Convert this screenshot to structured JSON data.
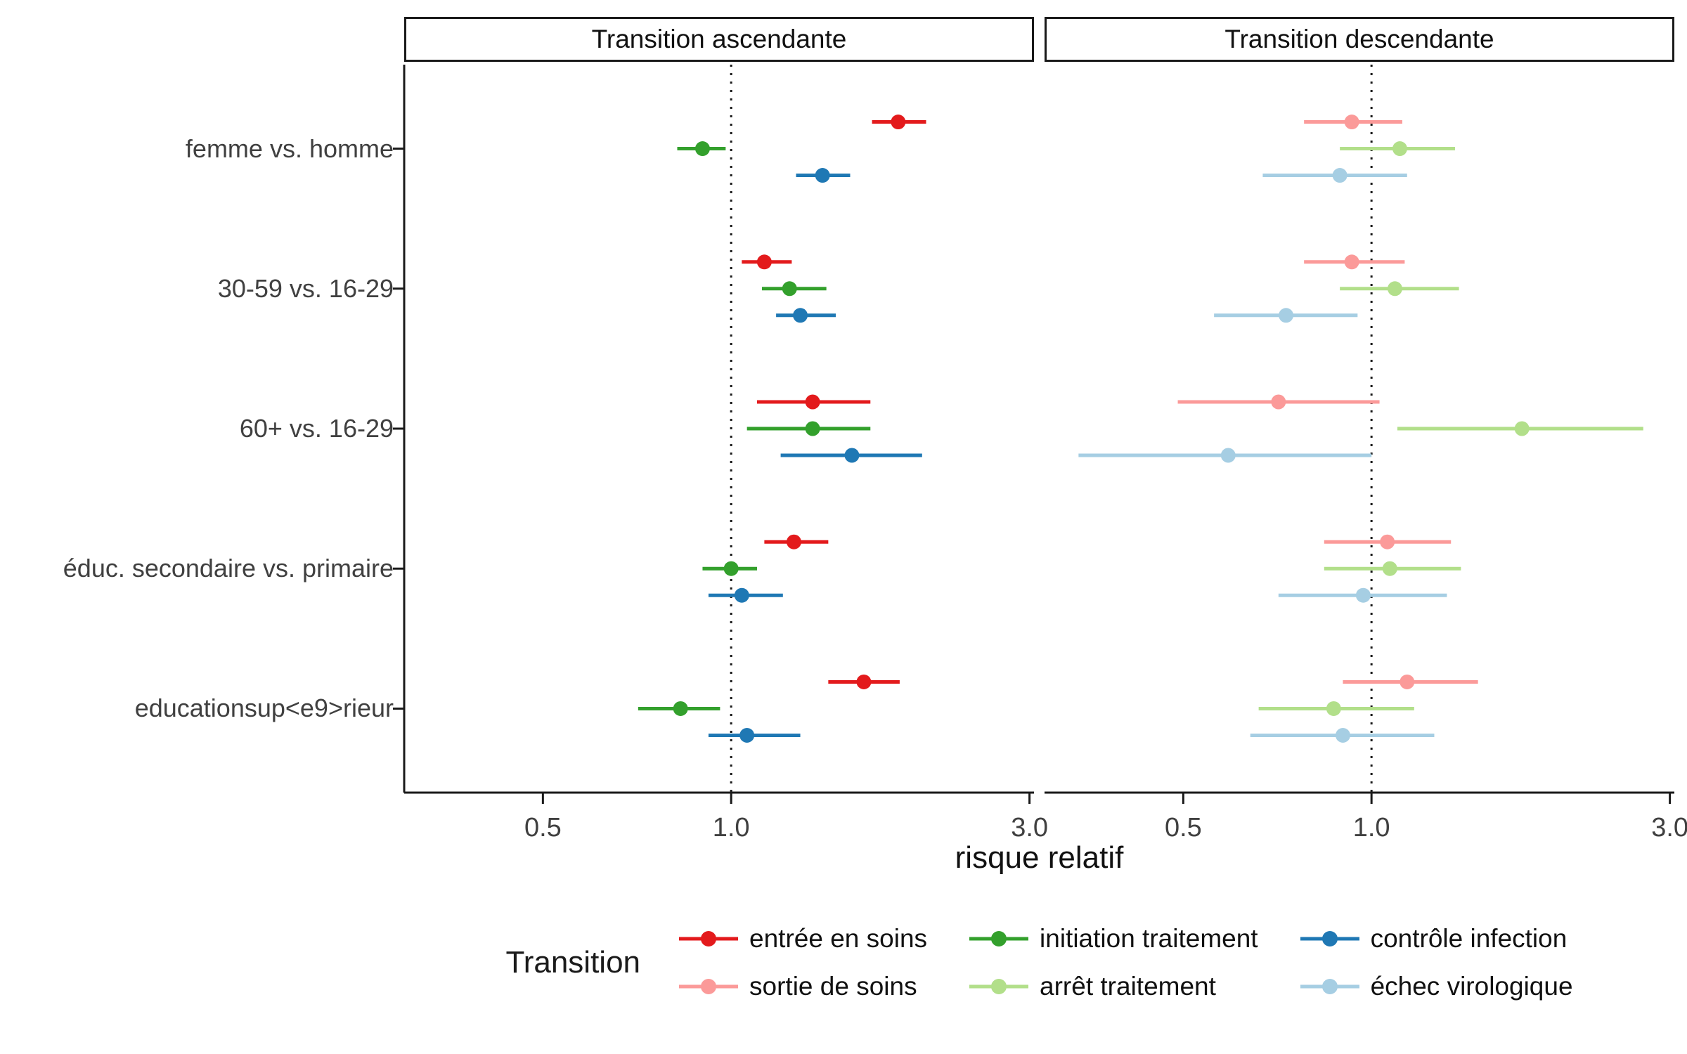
{
  "chart_data": {
    "type": "forest",
    "xlabel": "risque relatif",
    "x_scale": "log",
    "x_ticks": [
      0.5,
      1.0,
      3.0
    ],
    "x_tick_labels": [
      "0.5",
      "1.0",
      "3.0"
    ],
    "x_range": [
      0.3,
      3.05
    ],
    "reference_line": 1.0,
    "legend_title": "Transition",
    "legend_position": "bottom",
    "grid": "off",
    "panels": [
      {
        "title": "Transition ascendante"
      },
      {
        "title": "Transition descendante"
      }
    ],
    "categories": [
      "femme vs. homme",
      "30-59 vs. 16-29",
      "60+ vs. 16-29",
      "éduc. secondaire vs. primaire",
      "educationsup<e9>rieur"
    ],
    "series": [
      {
        "name": "entrée en soins",
        "color": "#e31a1c",
        "panel": 0,
        "points": [
          {
            "est": 1.85,
            "lo": 1.68,
            "hi": 2.05
          },
          {
            "est": 1.13,
            "lo": 1.04,
            "hi": 1.25
          },
          {
            "est": 1.35,
            "lo": 1.1,
            "hi": 1.67
          },
          {
            "est": 1.26,
            "lo": 1.13,
            "hi": 1.43
          },
          {
            "est": 1.63,
            "lo": 1.43,
            "hi": 1.86
          }
        ]
      },
      {
        "name": "initiation traitement",
        "color": "#33a02c",
        "panel": 0,
        "points": [
          {
            "est": 0.9,
            "lo": 0.82,
            "hi": 0.98
          },
          {
            "est": 1.24,
            "lo": 1.12,
            "hi": 1.42
          },
          {
            "est": 1.35,
            "lo": 1.06,
            "hi": 1.67
          },
          {
            "est": 1.0,
            "lo": 0.9,
            "hi": 1.1
          },
          {
            "est": 0.83,
            "lo": 0.71,
            "hi": 0.96
          }
        ]
      },
      {
        "name": "contrôle infection",
        "color": "#1f78b4",
        "panel": 0,
        "points": [
          {
            "est": 1.4,
            "lo": 1.27,
            "hi": 1.55
          },
          {
            "est": 1.29,
            "lo": 1.18,
            "hi": 1.47
          },
          {
            "est": 1.56,
            "lo": 1.2,
            "hi": 2.02
          },
          {
            "est": 1.04,
            "lo": 0.92,
            "hi": 1.21
          },
          {
            "est": 1.06,
            "lo": 0.92,
            "hi": 1.29
          }
        ]
      },
      {
        "name": "sortie de soins",
        "color": "#fb9a99",
        "panel": 1,
        "points": [
          {
            "est": 0.93,
            "lo": 0.78,
            "hi": 1.12
          },
          {
            "est": 0.93,
            "lo": 0.78,
            "hi": 1.13
          },
          {
            "est": 0.71,
            "lo": 0.49,
            "hi": 1.03
          },
          {
            "est": 1.06,
            "lo": 0.84,
            "hi": 1.34
          },
          {
            "est": 1.14,
            "lo": 0.9,
            "hi": 1.48
          }
        ]
      },
      {
        "name": "arrêt traitement",
        "color": "#b2df8a",
        "panel": 1,
        "points": [
          {
            "est": 1.11,
            "lo": 0.89,
            "hi": 1.36
          },
          {
            "est": 1.09,
            "lo": 0.89,
            "hi": 1.38
          },
          {
            "est": 1.74,
            "lo": 1.1,
            "hi": 2.72
          },
          {
            "est": 1.07,
            "lo": 0.84,
            "hi": 1.39
          },
          {
            "est": 0.87,
            "lo": 0.66,
            "hi": 1.17
          }
        ]
      },
      {
        "name": "échec virologique",
        "color": "#a6cee3",
        "panel": 1,
        "points": [
          {
            "est": 0.89,
            "lo": 0.67,
            "hi": 1.14
          },
          {
            "est": 0.73,
            "lo": 0.56,
            "hi": 0.95
          },
          {
            "est": 0.59,
            "lo": 0.34,
            "hi": 1.0
          },
          {
            "est": 0.97,
            "lo": 0.71,
            "hi": 1.32
          },
          {
            "est": 0.9,
            "lo": 0.64,
            "hi": 1.26
          }
        ]
      }
    ]
  }
}
